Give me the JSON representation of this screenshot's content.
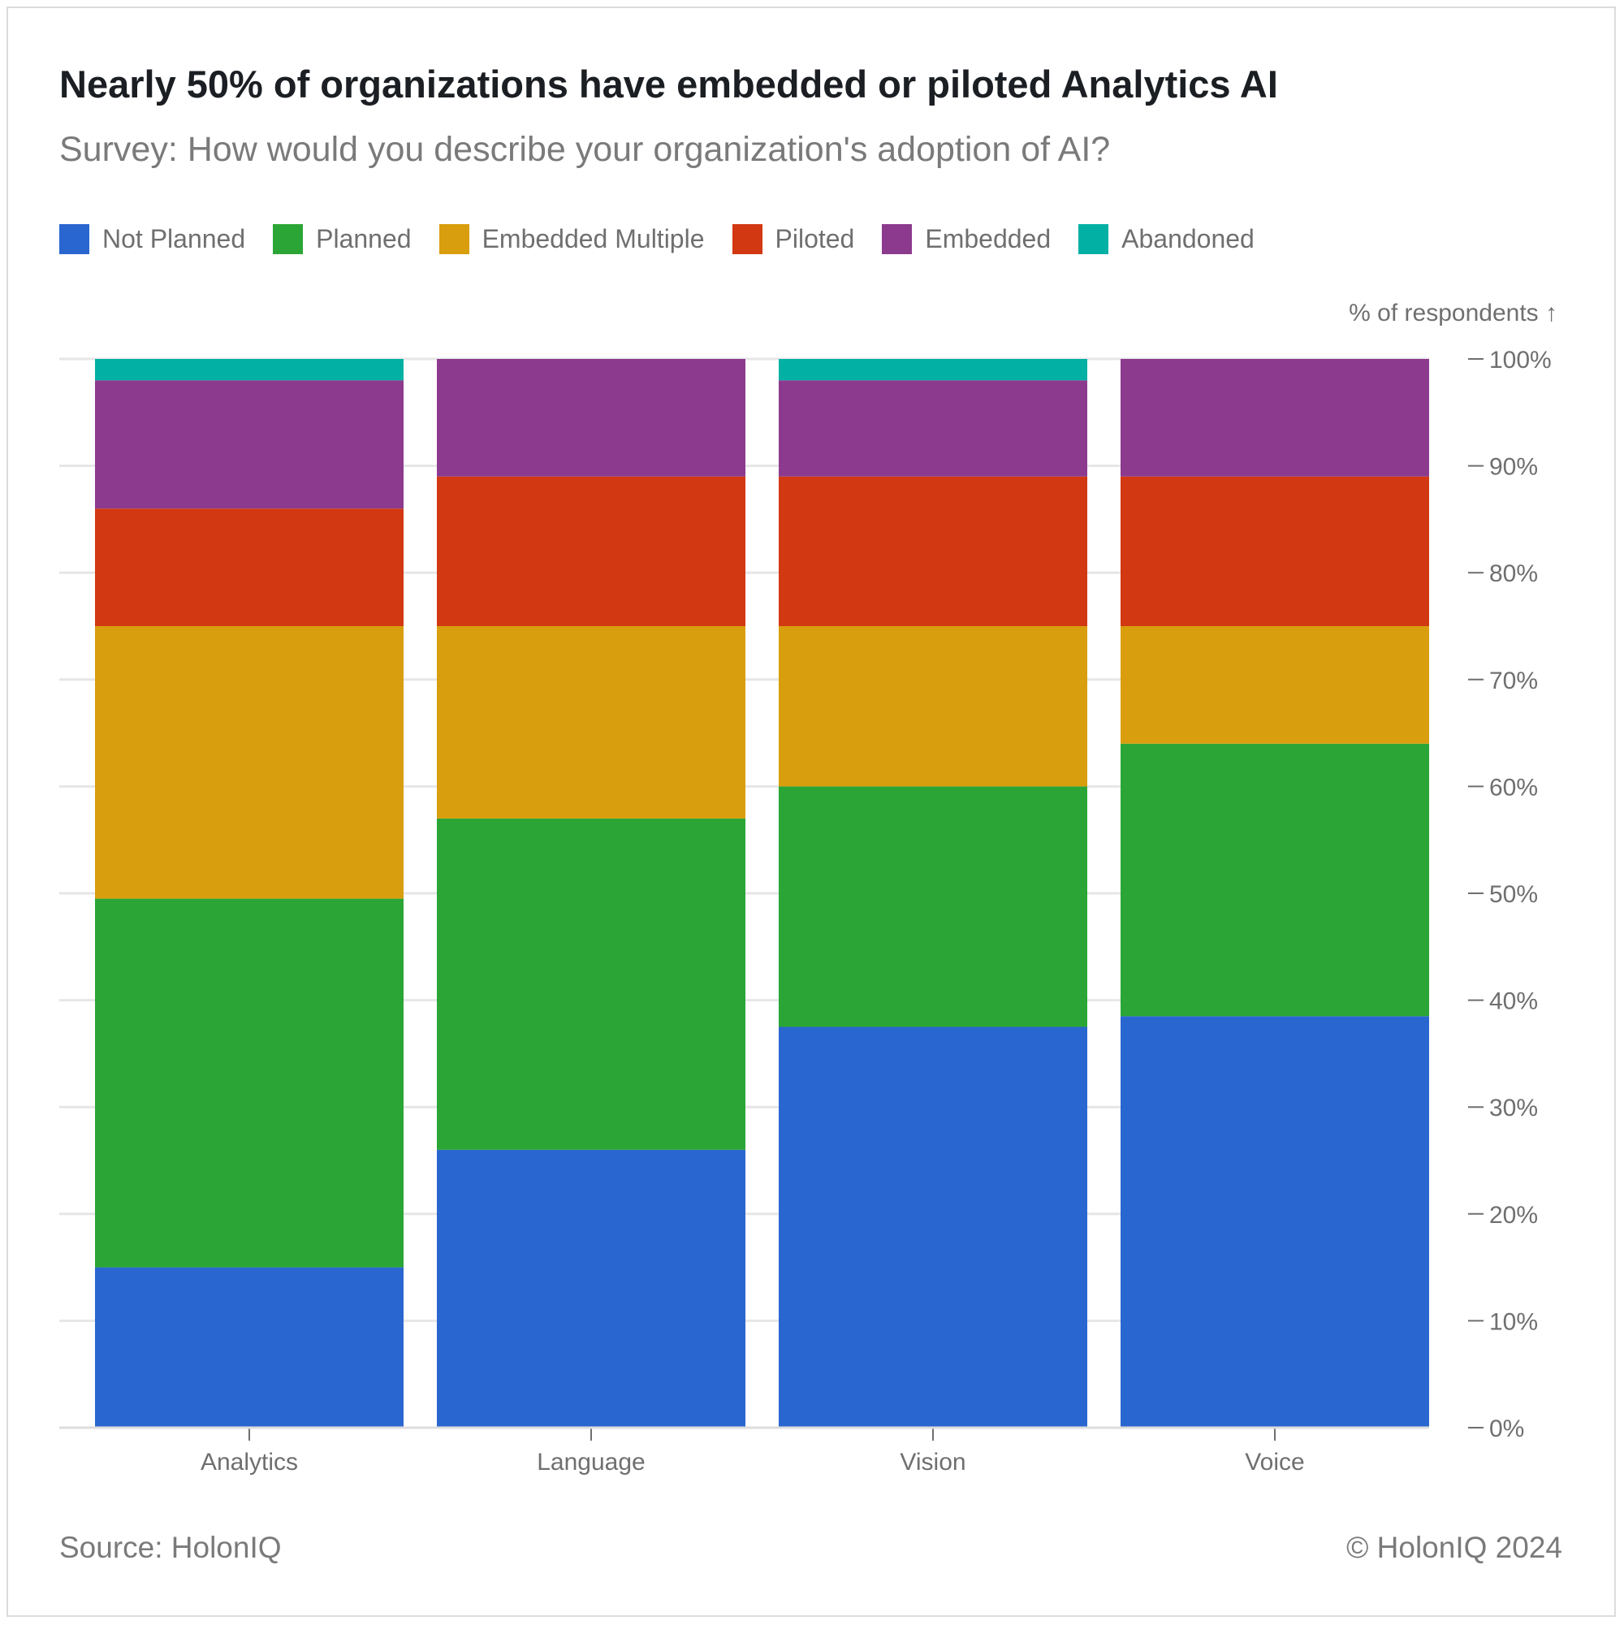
{
  "header": {
    "title": "Nearly 50% of organizations have embedded or piloted Analytics AI",
    "subtitle": "Survey: How would you describe your organization's adoption of AI?"
  },
  "legend": [
    {
      "label": "Not Planned",
      "color": "#2a66cf"
    },
    {
      "label": "Planned",
      "color": "#2ba636"
    },
    {
      "label": "Embedded Multiple",
      "color": "#d99e0d"
    },
    {
      "label": "Piloted",
      "color": "#d23812"
    },
    {
      "label": "Embedded",
      "color": "#8c3a8e"
    },
    {
      "label": "Abandoned",
      "color": "#03b0a4"
    }
  ],
  "footer": {
    "source": "Source: HolonIQ",
    "copyright": "© HolonIQ 2024"
  },
  "chart_data": {
    "type": "bar",
    "stacked": true,
    "title": "Nearly 50% of organizations have embedded or piloted Analytics AI",
    "subtitle": "Survey: How would you describe your organization's adoption of AI?",
    "ylabel": "% of respondents ↑",
    "y_axis_position": "right",
    "ylim": [
      0,
      100
    ],
    "yticks": [
      0,
      10,
      20,
      30,
      40,
      50,
      60,
      70,
      80,
      90,
      100
    ],
    "ytick_labels": [
      "0%",
      "10%",
      "20%",
      "30%",
      "40%",
      "50%",
      "60%",
      "70%",
      "80%",
      "90%",
      "100%"
    ],
    "grid": true,
    "legend_position": "top-left",
    "categories": [
      "Analytics",
      "Language",
      "Vision",
      "Voice"
    ],
    "series": [
      {
        "name": "Not Planned",
        "color": "#2a66cf",
        "values": [
          15,
          26,
          37.5,
          38.5
        ]
      },
      {
        "name": "Planned",
        "color": "#2ba636",
        "values": [
          34.5,
          31,
          22.5,
          25.5
        ]
      },
      {
        "name": "Embedded Multiple",
        "color": "#d99e0d",
        "values": [
          25.5,
          18,
          15,
          11
        ]
      },
      {
        "name": "Piloted",
        "color": "#d23812",
        "values": [
          11,
          14,
          14,
          14
        ]
      },
      {
        "name": "Embedded",
        "color": "#8c3a8e",
        "values": [
          12,
          11,
          9,
          11
        ]
      },
      {
        "name": "Abandoned",
        "color": "#03b0a4",
        "values": [
          2,
          0,
          2,
          0
        ]
      }
    ]
  }
}
